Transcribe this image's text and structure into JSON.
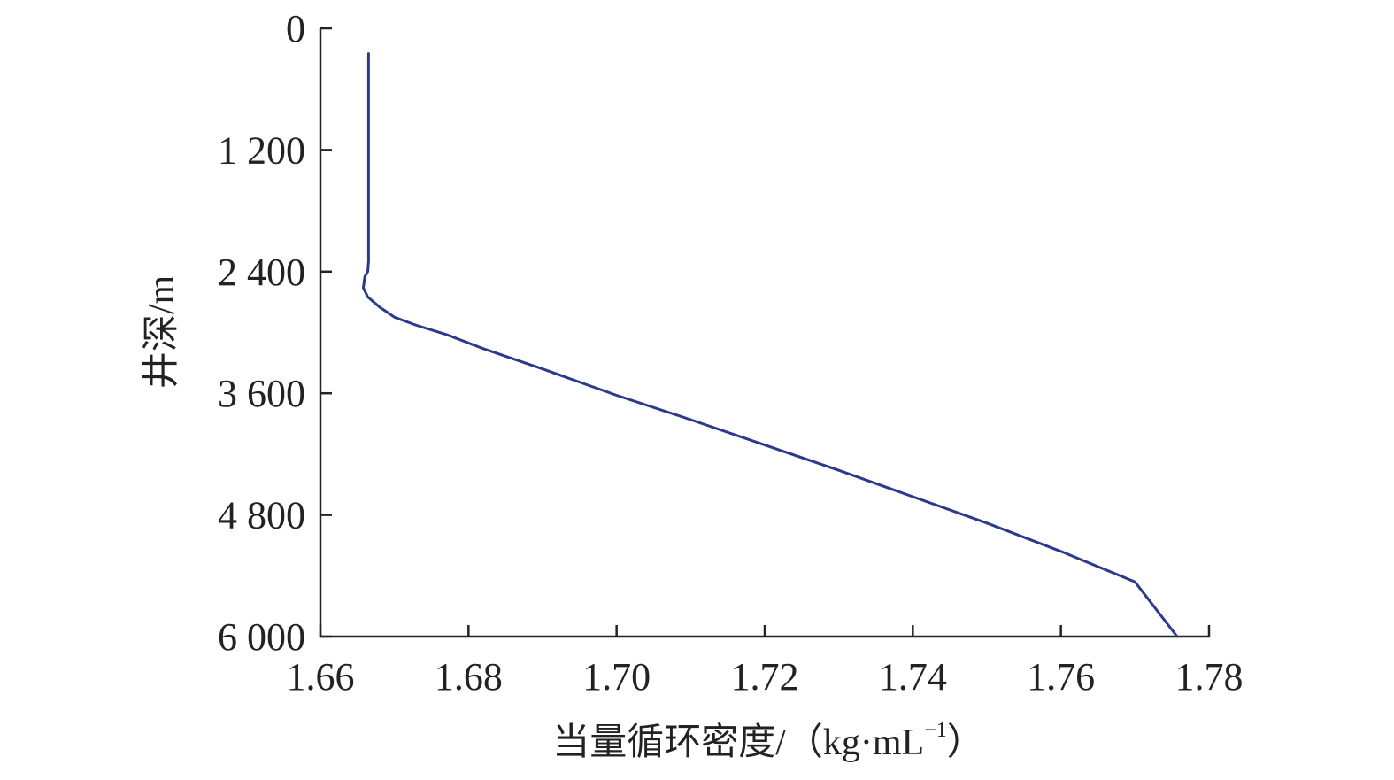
{
  "chart_data": {
    "type": "line",
    "title": "",
    "xlabel": "当量循环密度/（kg·mL",
    "xlabel_sup": "−1",
    "xlabel_close": "）",
    "ylabel": "井深/m",
    "xlim": [
      1.66,
      1.78
    ],
    "ylim": [
      0,
      6000
    ],
    "y_inverted": true,
    "grid": false,
    "x_ticks": [
      1.66,
      1.68,
      1.7,
      1.72,
      1.74,
      1.76,
      1.78
    ],
    "x_tick_labels": [
      "1.66",
      "1.68",
      "1.70",
      "1.72",
      "1.74",
      "1.76",
      "1.78"
    ],
    "y_ticks": [
      0,
      1200,
      2400,
      3600,
      4800,
      6000
    ],
    "y_tick_labels": [
      "0",
      "1 200",
      "2 400",
      "3 600",
      "4 800",
      "6 000"
    ],
    "series": [
      {
        "color": "#2b3a8c",
        "x": [
          1.6665,
          1.6665,
          1.6665,
          1.6665,
          1.6664,
          1.666,
          1.6658,
          1.6664,
          1.668,
          1.67,
          1.673,
          1.677,
          1.682,
          1.69,
          1.7,
          1.71,
          1.72,
          1.73,
          1.74,
          1.75,
          1.76,
          1.77,
          1.7757
        ],
        "y": [
          250,
          1000,
          2000,
          2300,
          2400,
          2450,
          2560,
          2650,
          2750,
          2850,
          2930,
          3020,
          3160,
          3360,
          3620,
          3860,
          4110,
          4360,
          4620,
          4880,
          5160,
          5460,
          6000
        ]
      }
    ]
  }
}
